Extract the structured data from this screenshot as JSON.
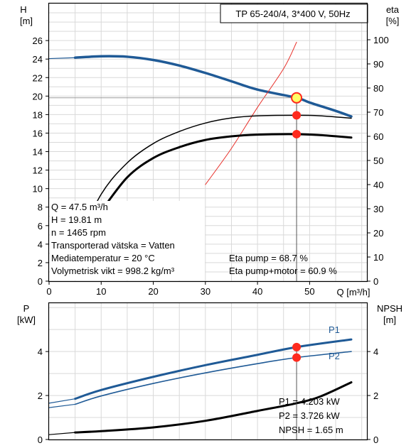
{
  "title": "TP 65-240/4, 3*400 V, 50Hz",
  "colors": {
    "grid": "#d9d9d9",
    "head_curve": "#1f5a96",
    "power_curve": "#1f5a96",
    "black_curve": "#000000",
    "efficiency_line": "#e8302a",
    "operating_point": "#ff2a1e",
    "duty_marker_fill": "#ffff66",
    "label_blue": "#1f5a96"
  },
  "chart_data": [
    {
      "type": "line",
      "panel": "head-efficiency",
      "xlabel": "Q [m³/h]",
      "x_ticks": [
        0,
        10,
        20,
        30,
        40,
        50
      ],
      "xlim": [
        0,
        61
      ],
      "y_left": {
        "label_top": "H",
        "label_unit": "[m]",
        "ticks": [
          0,
          2,
          4,
          6,
          8,
          10,
          12,
          14,
          16,
          18,
          20,
          22,
          24,
          26
        ],
        "lim": [
          0,
          30
        ]
      },
      "y_right": {
        "label_top": "eta",
        "label_unit": "[%]",
        "ticks": [
          0,
          10,
          20,
          30,
          40,
          50,
          60,
          70,
          80,
          90,
          100
        ],
        "lim": [
          0,
          115
        ]
      },
      "series": [
        {
          "key": "head",
          "axis": "left",
          "width": 3.5,
          "points": [
            [
              5,
              24.15
            ],
            [
              10,
              24.3
            ],
            [
              15,
              24.25
            ],
            [
              20,
              23.9
            ],
            [
              25,
              23.3
            ],
            [
              30,
              22.5
            ],
            [
              35,
              21.6
            ],
            [
              40,
              20.7
            ],
            [
              47.5,
              19.81
            ],
            [
              50,
              19.3
            ],
            [
              55,
              18.4
            ],
            [
              58,
              17.8
            ]
          ]
        },
        {
          "key": "efficiency",
          "axis": "right",
          "points": [
            [
              30,
              40
            ],
            [
              35,
              55
            ],
            [
              40,
              72
            ],
            [
              45,
              88
            ],
            [
              47.5,
              99
            ]
          ]
        },
        {
          "key": "eta_pump",
          "axis": "right",
          "width": 1.5,
          "points": [
            [
              5,
              14
            ],
            [
              10,
              36
            ],
            [
              15,
              49
            ],
            [
              20,
              57
            ],
            [
              25,
              62
            ],
            [
              30,
              65.5
            ],
            [
              35,
              67.6
            ],
            [
              40,
              68.5
            ],
            [
              47.5,
              68.7
            ],
            [
              52,
              68.5
            ],
            [
              58,
              67.5
            ]
          ]
        },
        {
          "key": "eta_pump_motor",
          "axis": "right",
          "width": 3,
          "points": [
            [
              10,
              29
            ],
            [
              15,
              43
            ],
            [
              20,
              51
            ],
            [
              25,
              55.5
            ],
            [
              30,
              58.5
            ],
            [
              35,
              60
            ],
            [
              40,
              60.7
            ],
            [
              47.5,
              60.9
            ],
            [
              52,
              60.5
            ],
            [
              58,
              59.5
            ]
          ]
        }
      ],
      "duty_point": {
        "x": 47.5,
        "y": 19.81
      },
      "operating_points": [
        {
          "x": 47.5,
          "y": 68.7,
          "axis": "right"
        },
        {
          "x": 47.5,
          "y": 60.9,
          "axis": "right"
        }
      ],
      "info": {
        "lines": [
          "Q = 47.5 m³/h",
          "H = 19.81 m",
          "n = 1465 rpm",
          "Transporterad vätska = Vatten",
          "Mediatemperatur = 20 °C",
          "Volymetrisk vikt = 998.2 kg/m³"
        ],
        "eta_lines": [
          "Eta pump = 68.7 %",
          "Eta pump+motor = 60.9 %"
        ]
      }
    },
    {
      "type": "line",
      "panel": "power-npsh",
      "xlim": [
        0,
        61
      ],
      "y_left": {
        "label_top": "P",
        "label_unit": "[kW]",
        "ticks": [
          0,
          2,
          4
        ],
        "lim": [
          0,
          6.2
        ]
      },
      "y_right": {
        "label_top": "NPSH",
        "label_unit": "[m]",
        "ticks": [
          0,
          2,
          4
        ],
        "lim": [
          0,
          6.2
        ]
      },
      "series": [
        {
          "key": "p1",
          "name": "P1",
          "axis": "left",
          "width": 3,
          "points": [
            [
              5,
              1.85
            ],
            [
              10,
              2.25
            ],
            [
              20,
              2.85
            ],
            [
              30,
              3.38
            ],
            [
              40,
              3.85
            ],
            [
              47.5,
              4.203
            ],
            [
              58,
              4.55
            ]
          ]
        },
        {
          "key": "p1_thin",
          "axis": "left",
          "width": 1.2,
          "points": [
            [
              0,
              1.65
            ],
            [
              5,
              1.85
            ]
          ]
        },
        {
          "key": "p2",
          "name": "P2",
          "axis": "left",
          "width": 1.6,
          "points": [
            [
              5,
              1.6
            ],
            [
              10,
              1.98
            ],
            [
              20,
              2.55
            ],
            [
              30,
              3.03
            ],
            [
              40,
              3.45
            ],
            [
              47.5,
              3.726
            ],
            [
              58,
              4.0
            ]
          ]
        },
        {
          "key": "p2_thin",
          "axis": "left",
          "width": 1.2,
          "points": [
            [
              0,
              1.45
            ],
            [
              5,
              1.6
            ]
          ]
        },
        {
          "key": "npsh",
          "axis": "right",
          "width": 3,
          "points": [
            [
              5,
              0.32
            ],
            [
              10,
              0.38
            ],
            [
              20,
              0.55
            ],
            [
              30,
              0.85
            ],
            [
              40,
              1.3
            ],
            [
              47.5,
              1.65
            ],
            [
              52,
              1.95
            ],
            [
              58,
              2.6
            ]
          ]
        },
        {
          "key": "npsh_thin",
          "axis": "right",
          "width": 1.2,
          "points": [
            [
              0,
              0.22
            ],
            [
              5,
              0.32
            ]
          ]
        }
      ],
      "operating_points": [
        {
          "x": 47.5,
          "y": 4.203
        },
        {
          "x": 47.5,
          "y": 3.726
        }
      ],
      "info": {
        "lines": [
          "P1 = 4.203 kW",
          "P2 = 3.726 kW",
          "NPSH = 1.65 m"
        ]
      }
    }
  ]
}
